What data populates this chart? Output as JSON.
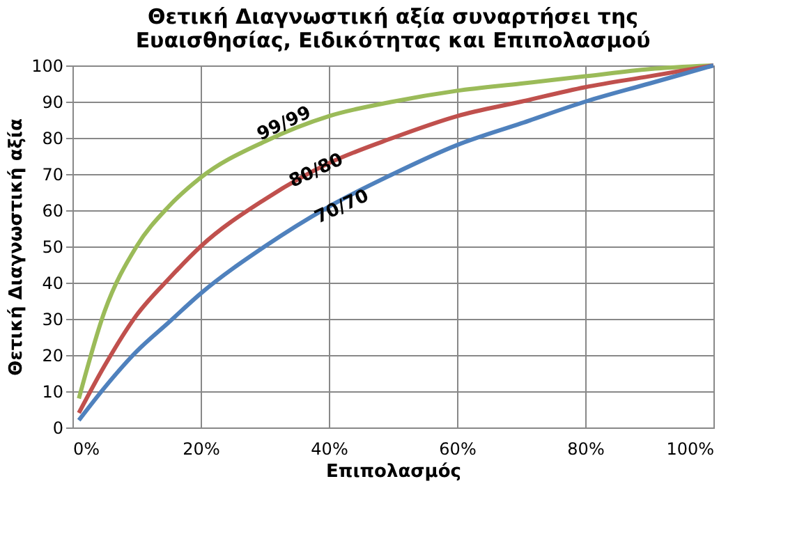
{
  "chart_data": {
    "type": "line",
    "title": "Θετική Διαγνωστική αξία συναρτήσει της\nΕυαισθησίας, Ειδικότητας και Επιπολασμού",
    "xlabel": "Επιπολασμός",
    "ylabel": "Θετική Διαγνωστική αξία",
    "x": [
      1,
      5,
      10,
      15,
      20,
      30,
      40,
      50,
      60,
      70,
      80,
      90,
      100
    ],
    "series": [
      {
        "color": "#9bbb59",
        "values": [
          8,
          32,
          50,
          61,
          69,
          79,
          86,
          90,
          93,
          95,
          97,
          99,
          100
        ]
      },
      {
        "color": "#c0504d",
        "values": [
          4,
          17,
          31,
          41,
          50,
          63,
          73,
          80,
          86,
          90,
          94,
          97,
          100
        ]
      },
      {
        "color": "#4f81bd",
        "values": [
          2,
          11,
          21,
          29,
          37,
          50,
          61,
          70,
          78,
          84,
          90,
          95,
          100
        ]
      }
    ],
    "annotations": [
      {
        "text": "99/99",
        "x": 33,
        "y": 84
      },
      {
        "text": "80/80",
        "x": 38,
        "y": 71
      },
      {
        "text": "70/70",
        "x": 42,
        "y": 61
      }
    ],
    "xlim": [
      0,
      100
    ],
    "xticks": [
      {
        "value": 0,
        "label": "0%"
      },
      {
        "value": 20,
        "label": "20%"
      },
      {
        "value": 40,
        "label": "40%"
      },
      {
        "value": 60,
        "label": "60%"
      },
      {
        "value": 80,
        "label": "80%"
      },
      {
        "value": 100,
        "label": "100%"
      }
    ],
    "ylim": [
      0,
      100
    ],
    "yticks": [
      0,
      10,
      20,
      30,
      40,
      50,
      60,
      70,
      80,
      90,
      100
    ],
    "grid": true,
    "marker": "none",
    "line_style": "solid"
  }
}
